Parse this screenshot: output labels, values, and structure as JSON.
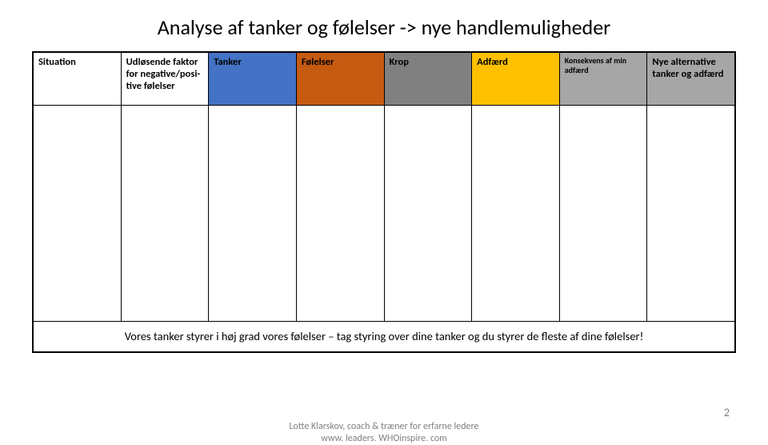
{
  "title": "Analyse af tanker og følelser -> nye handlemuligheder",
  "table": {
    "columns": [
      {
        "label": "Situation",
        "bg": "#ffffff",
        "fontsize": "12.5px"
      },
      {
        "label": "Udløsende faktor for negative/posi-tive følelser",
        "bg": "#ffffff",
        "fontsize": "12.5px"
      },
      {
        "label": "Tanker",
        "bg": "#4472c4",
        "fontsize": "12.5px"
      },
      {
        "label": "Følelser",
        "bg": "#c55a11",
        "fontsize": "12.5px"
      },
      {
        "label": "Krop",
        "bg": "#808080",
        "fontsize": "12.5px"
      },
      {
        "label": "Adfærd",
        "bg": "#ffc000",
        "fontsize": "12.5px"
      },
      {
        "label": "Konsekvens af min adfærd",
        "bg": "#a6a6a6",
        "fontsize": "10px"
      },
      {
        "label": "Nye alternative tanker og adfærd",
        "bg": "#a6a6a6",
        "fontsize": "12.5px"
      }
    ],
    "body_row_bg": "#ffffff",
    "caption": "Vores tanker styrer i høj grad vores følelser – tag styring over dine tanker og du styrer de fleste af dine følelser!"
  },
  "footer": {
    "line1": "Lotte Klarskov, coach & træner for erfarne ledere",
    "line2": "www. leaders. WHOinspire. com",
    "slide_number": "2"
  },
  "colors": {
    "text": "#000000",
    "footer_text": "#7f7f7f",
    "border": "#000000",
    "background": "#ffffff"
  }
}
